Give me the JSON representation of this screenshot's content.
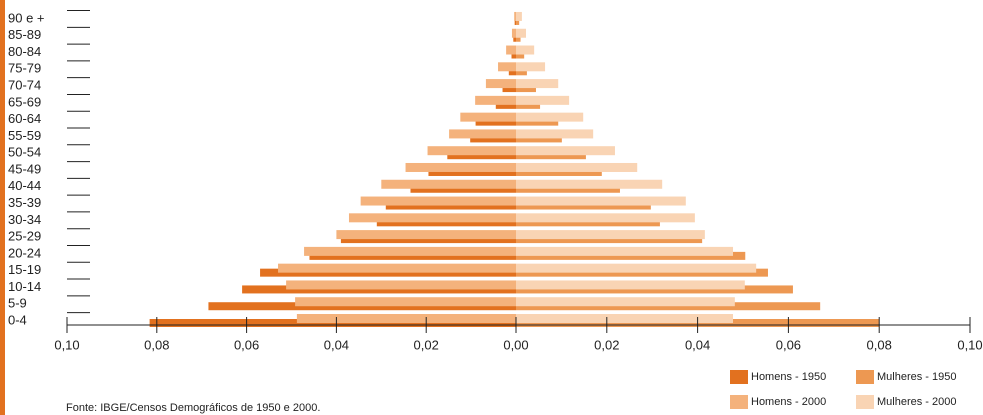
{
  "chart_data": {
    "type": "pyramid",
    "categories": [
      "0-4",
      "5-9",
      "10-14",
      "15-19",
      "20-24",
      "25-29",
      "30-34",
      "35-39",
      "40-44",
      "45-49",
      "50-54",
      "55-59",
      "60-64",
      "65-69",
      "70-74",
      "75-79",
      "80-84",
      "85-89",
      "90 e +"
    ],
    "series": [
      {
        "name": "Homens - 1950",
        "color": "#e2711f",
        "side": "left",
        "layer": "back",
        "values": [
          0.0816,
          0.0685,
          0.061,
          0.057,
          0.046,
          0.039,
          0.031,
          0.029,
          0.0235,
          0.0195,
          0.0153,
          0.0102,
          0.009,
          0.0045,
          0.003,
          0.0016,
          0.001,
          0.0006,
          0.0003
        ]
      },
      {
        "name": "Mulheres - 1950",
        "color": "#ed9852",
        "side": "right",
        "layer": "back",
        "values": [
          0.08,
          0.067,
          0.061,
          0.0555,
          0.0505,
          0.041,
          0.0317,
          0.0297,
          0.0229,
          0.0189,
          0.0154,
          0.0101,
          0.0093,
          0.0053,
          0.0044,
          0.0024,
          0.0018,
          0.001,
          0.0007
        ]
      },
      {
        "name": "Homens - 2000",
        "color": "#f4b27c",
        "side": "left",
        "layer": "front",
        "values": [
          0.0488,
          0.0492,
          0.0512,
          0.053,
          0.0472,
          0.04,
          0.0372,
          0.0346,
          0.03,
          0.0246,
          0.0197,
          0.0149,
          0.0124,
          0.0091,
          0.0067,
          0.004,
          0.0022,
          0.0009,
          0.0004
        ]
      },
      {
        "name": "Mulheres - 2000",
        "color": "#f9d4b4",
        "side": "right",
        "layer": "front",
        "values": [
          0.0478,
          0.0482,
          0.0504,
          0.0529,
          0.0478,
          0.0416,
          0.0394,
          0.0374,
          0.0322,
          0.0267,
          0.0218,
          0.017,
          0.0148,
          0.0117,
          0.0093,
          0.0064,
          0.004,
          0.0022,
          0.0013
        ]
      }
    ],
    "xlim": [
      0,
      0.1
    ],
    "xticks": [
      {
        "value": 0,
        "label": "0,00"
      },
      {
        "value": 0.02,
        "label": "0,02"
      },
      {
        "value": 0.04,
        "label": "0,04"
      },
      {
        "value": 0.06,
        "label": "0,06"
      },
      {
        "value": 0.08,
        "label": "0,08"
      },
      {
        "value": 0.1,
        "label": "0,10"
      }
    ],
    "xticks_left": [
      {
        "value": 0.02,
        "label": "0,02"
      },
      {
        "value": 0.04,
        "label": "0,04"
      },
      {
        "value": 0.06,
        "label": "0,06"
      },
      {
        "value": 0.08,
        "label": "0,08"
      },
      {
        "value": 0.1,
        "label": "0,10"
      }
    ],
    "source": "Fonte: IBGE/Censos Demográficos de 1950 e 2000."
  }
}
